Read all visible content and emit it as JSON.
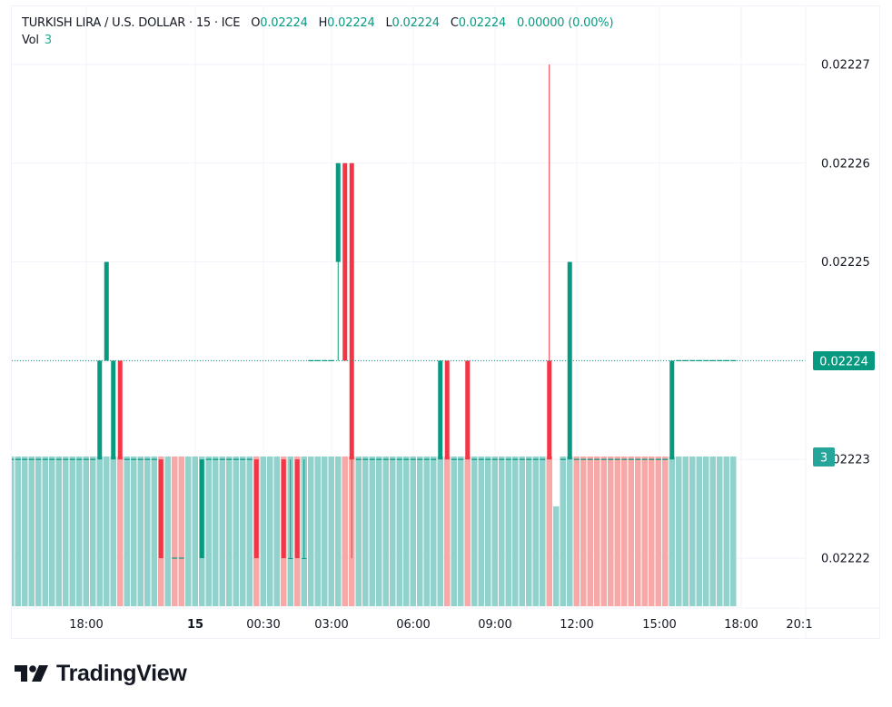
{
  "header": {
    "symbol": "TURKISH LIRA / U.S. DOLLAR · 15 · ICE",
    "open_label": "O",
    "open": "0.02224",
    "high_label": "H",
    "high": "0.02224",
    "low_label": "L",
    "low": "0.02224",
    "close_label": "C",
    "close": "0.02224",
    "change": "0.00000 (0.00%)",
    "vol_label": "Vol",
    "vol": "3"
  },
  "price_axis": {
    "ticks": [
      "0.02227",
      "0.02226",
      "0.02225",
      "0.02224",
      "0.02223",
      "0.02222"
    ],
    "last_price": "0.02224",
    "last_volume": "3"
  },
  "time_axis": {
    "ticks": [
      "18:00",
      "15",
      "00:30",
      "03:00",
      "06:00",
      "09:00",
      "12:00",
      "15:00",
      "18:00",
      "20:1"
    ]
  },
  "brand": {
    "name": "TradingView"
  },
  "colors": {
    "up": "#089981",
    "down": "#f23645",
    "vol_up": "#92d2cc",
    "vol_down": "#f7a9a7",
    "grid": "#f0f3fa"
  },
  "chart_data": {
    "type": "candlestick",
    "title": "TURKISH LIRA / U.S. DOLLAR · 15 · ICE",
    "interval": "15",
    "ylim": [
      0.022215,
      0.022272
    ],
    "yticks": [
      0.02222,
      0.02223,
      0.02224,
      0.02225,
      0.02226,
      0.02227
    ],
    "xticks": [
      "18:00",
      "15",
      "00:30",
      "03:00",
      "06:00",
      "09:00",
      "12:00",
      "15:00",
      "18:00",
      "20:1"
    ],
    "bar_count": 107,
    "candles_note": "Unlisted bars are flat dojis at the previous close; volume 3 unless noted",
    "candles": [
      {
        "i": 13,
        "o": 0.02223,
        "h": 0.02224,
        "l": 0.02223,
        "c": 0.02224
      },
      {
        "i": 14,
        "o": 0.02224,
        "h": 0.02225,
        "l": 0.02224,
        "c": 0.02225
      },
      {
        "i": 15,
        "o": 0.02223,
        "h": 0.02224,
        "l": 0.02223,
        "c": 0.02224
      },
      {
        "i": 16,
        "o": 0.02224,
        "h": 0.02224,
        "l": 0.02223,
        "c": 0.02223
      },
      {
        "i": 22,
        "o": 0.02223,
        "h": 0.02223,
        "l": 0.02222,
        "c": 0.02222
      },
      {
        "i": 28,
        "o": 0.02222,
        "h": 0.02223,
        "l": 0.02222,
        "c": 0.02223
      },
      {
        "i": 36,
        "o": 0.02223,
        "h": 0.02223,
        "l": 0.02222,
        "c": 0.02222
      },
      {
        "i": 40,
        "o": 0.02223,
        "h": 0.02223,
        "l": 0.02222,
        "c": 0.02222
      },
      {
        "i": 41,
        "o": 0.02222,
        "h": 0.02223,
        "l": 0.02222,
        "c": 0.02222
      },
      {
        "i": 42,
        "o": 0.02223,
        "h": 0.02223,
        "l": 0.02222,
        "c": 0.02222
      },
      {
        "i": 43,
        "o": 0.02222,
        "h": 0.02223,
        "l": 0.02222,
        "c": 0.02222
      },
      {
        "i": 48,
        "o": 0.02225,
        "h": 0.02226,
        "l": 0.02224,
        "c": 0.02226
      },
      {
        "i": 49,
        "o": 0.02226,
        "h": 0.02226,
        "l": 0.02224,
        "c": 0.02224
      },
      {
        "i": 50,
        "o": 0.02226,
        "h": 0.02226,
        "l": 0.02222,
        "c": 0.02223
      },
      {
        "i": 63,
        "o": 0.02223,
        "h": 0.02224,
        "l": 0.02223,
        "c": 0.02224
      },
      {
        "i": 64,
        "o": 0.02224,
        "h": 0.02224,
        "l": 0.02223,
        "c": 0.02223
      },
      {
        "i": 67,
        "o": 0.02224,
        "h": 0.02224,
        "l": 0.02223,
        "c": 0.02223
      },
      {
        "i": 79,
        "o": 0.02224,
        "h": 0.02227,
        "l": 0.02223,
        "c": 0.02223
      },
      {
        "i": 82,
        "o": 0.02223,
        "h": 0.02225,
        "l": 0.02223,
        "c": 0.02225
      },
      {
        "i": 97,
        "o": 0.02223,
        "h": 0.02224,
        "l": 0.02223,
        "c": 0.02224
      }
    ],
    "doji_levels": [
      {
        "from": 0,
        "to": 12,
        "price": 0.02223
      },
      {
        "from": 17,
        "to": 21,
        "price": 0.02223
      },
      {
        "from": 24,
        "to": 25,
        "price": 0.02222
      },
      {
        "from": 29,
        "to": 35,
        "price": 0.02223
      },
      {
        "from": 44,
        "to": 47,
        "price": 0.02224
      },
      {
        "from": 51,
        "to": 62,
        "price": 0.02223
      },
      {
        "from": 65,
        "to": 66,
        "price": 0.02223
      },
      {
        "from": 68,
        "to": 78,
        "price": 0.02223
      },
      {
        "from": 81,
        "to": 81,
        "price": 0.02223
      },
      {
        "from": 83,
        "to": 96,
        "price": 0.02223
      },
      {
        "from": 98,
        "to": 106,
        "price": 0.02224
      }
    ],
    "volume": {
      "default": 3,
      "overrides": [
        {
          "i": 80,
          "v": 2
        }
      ],
      "down_bars": [
        16,
        22,
        24,
        25,
        36,
        40,
        42,
        49,
        50,
        64,
        67,
        79,
        83,
        84,
        85,
        86,
        87,
        88,
        89,
        90,
        91,
        92,
        93,
        94,
        95,
        96
      ],
      "gap_bars": []
    }
  }
}
